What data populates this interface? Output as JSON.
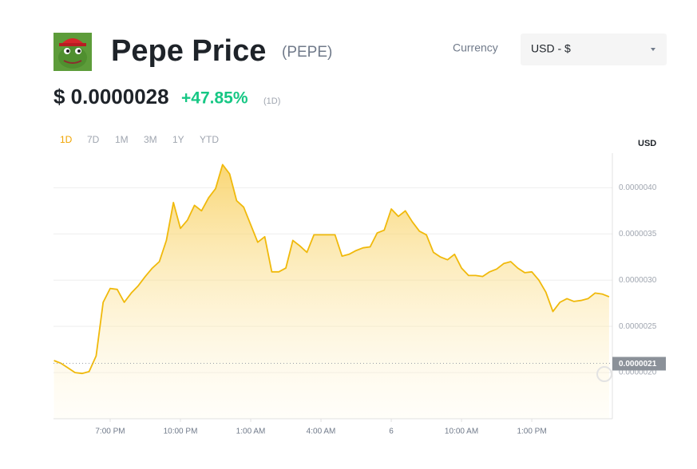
{
  "header": {
    "title": "Pepe Price",
    "symbol": "(PEPE)",
    "currency_label": "Currency",
    "currency_value": "USD - $",
    "price": "$ 0.0000028",
    "change": "+47.85%",
    "change_period": "(1D)"
  },
  "range_tabs": {
    "items": [
      "1D",
      "7D",
      "1M",
      "3M",
      "1Y",
      "YTD"
    ],
    "active": 0
  },
  "chart_data": {
    "type": "area",
    "ylabel": "USD",
    "color": "#f0b90b",
    "x": [
      0.6,
      0.9,
      1.2,
      1.5,
      1.8,
      2.1,
      2.4,
      2.7,
      3.0,
      3.3,
      3.6,
      3.9,
      4.2,
      4.5,
      4.8,
      5.1,
      5.4,
      5.7,
      6.0,
      6.3,
      6.6,
      6.9,
      7.2,
      7.5,
      7.8,
      8.1,
      8.4,
      8.7,
      9.0,
      9.3,
      9.6,
      9.9,
      10.2,
      10.5,
      10.8,
      11.1,
      11.4,
      11.7,
      12.0,
      12.3,
      12.6,
      12.9,
      13.2,
      13.5,
      13.8,
      14.1,
      14.4,
      14.7,
      15.0,
      15.3,
      15.6,
      15.9,
      16.2,
      16.5,
      16.8,
      17.1,
      17.4,
      17.7,
      18.0,
      18.3,
      18.6,
      18.9,
      19.2,
      19.5,
      19.8,
      20.1,
      20.4,
      20.7,
      21.0,
      21.3,
      21.6,
      21.9,
      22.2,
      22.5,
      22.8,
      23.1,
      23.4,
      23.7,
      24.0,
      24.3
    ],
    "values": [
      2.13e-06,
      2.1e-06,
      2.05e-06,
      2e-06,
      1.99e-06,
      2.01e-06,
      2.18e-06,
      2.76e-06,
      2.91e-06,
      2.9e-06,
      2.76e-06,
      2.86e-06,
      2.94e-06,
      3.04e-06,
      3.13e-06,
      3.2e-06,
      3.43e-06,
      3.84e-06,
      3.56e-06,
      3.65e-06,
      3.81e-06,
      3.75e-06,
      3.89e-06,
      3.99e-06,
      4.25e-06,
      4.15e-06,
      3.86e-06,
      3.79e-06,
      3.6e-06,
      3.41e-06,
      3.47e-06,
      3.09e-06,
      3.09e-06,
      3.13e-06,
      3.43e-06,
      3.37e-06,
      3.3e-06,
      3.49e-06,
      3.49e-06,
      3.49e-06,
      3.49e-06,
      3.26e-06,
      3.28e-06,
      3.32e-06,
      3.35e-06,
      3.36e-06,
      3.51e-06,
      3.54e-06,
      3.77e-06,
      3.69e-06,
      3.75e-06,
      3.63e-06,
      3.53e-06,
      3.49e-06,
      3.3e-06,
      3.25e-06,
      3.22e-06,
      3.28e-06,
      3.13e-06,
      3.05e-06,
      3.05e-06,
      3.04e-06,
      3.09e-06,
      3.12e-06,
      3.18e-06,
      3.2e-06,
      3.13e-06,
      3.08e-06,
      3.09e-06,
      3e-06,
      2.87e-06,
      2.66e-06,
      2.76e-06,
      2.8e-06,
      2.77e-06,
      2.78e-06,
      2.8e-06,
      2.86e-06,
      2.85e-06,
      2.82e-06
    ],
    "xlim": [
      0.58,
      24.44
    ],
    "xticks": [
      {
        "value": 3,
        "label": "7:00 PM"
      },
      {
        "value": 6,
        "label": "10:00 PM"
      },
      {
        "value": 9,
        "label": "1:00 AM"
      },
      {
        "value": 12,
        "label": "4:00 AM"
      },
      {
        "value": 15,
        "label": "6"
      },
      {
        "value": 18,
        "label": "10:00 AM"
      },
      {
        "value": 21,
        "label": "1:00 PM"
      }
    ],
    "ylim": [
      1.5e-06,
      4.4e-06
    ],
    "yticks": [
      {
        "value": 2e-06,
        "label": "0.0000020"
      },
      {
        "value": 2.5e-06,
        "label": "0.0000025"
      },
      {
        "value": 3e-06,
        "label": "0.0000030"
      },
      {
        "value": 3.5e-06,
        "label": "0.0000035"
      },
      {
        "value": 4e-06,
        "label": "0.0000040"
      }
    ],
    "last_price": {
      "value": 2.1e-06,
      "label": "0.0000021"
    },
    "grid": true
  }
}
